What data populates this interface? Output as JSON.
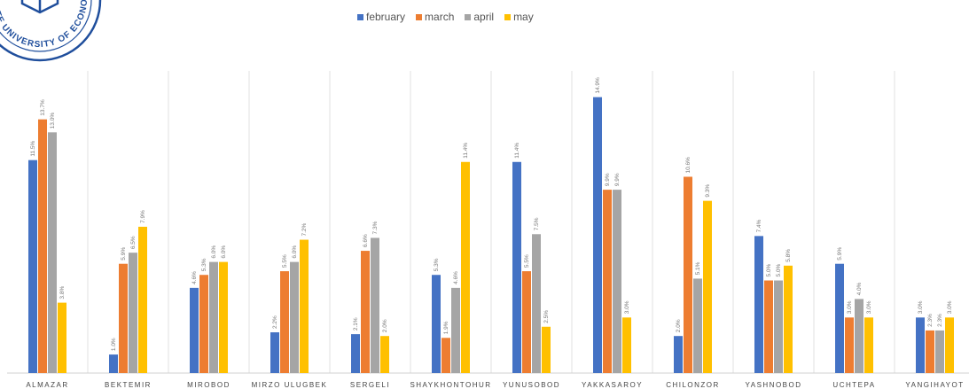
{
  "logo": {
    "text": "ATE UNIVERSITY OF ECONO"
  },
  "chart_data": {
    "type": "bar",
    "categories": [
      "ALMAZAR",
      "BEKTEMIR",
      "MIROBOD",
      "MIRZO ULUGBEK",
      "SERGELI",
      "SHAYKHONTOHUR",
      "YUNUSOBOD",
      "YAKKASAROY",
      "CHILONZOR",
      "YASHNOBOD",
      "UCHTEPA",
      "YANGIHAYOT"
    ],
    "series": [
      {
        "name": "february",
        "color": "#4472C4",
        "values": [
          11.5,
          1.0,
          4.6,
          2.2,
          2.1,
          5.3,
          11.4,
          14.9,
          2.0,
          7.4,
          5.9,
          3.0
        ]
      },
      {
        "name": "march",
        "color": "#ED7D31",
        "values": [
          13.7,
          5.9,
          5.3,
          5.5,
          6.6,
          1.9,
          5.5,
          9.9,
          10.6,
          5.0,
          3.0,
          2.3
        ]
      },
      {
        "name": "april",
        "color": "#A5A5A5",
        "values": [
          13.0,
          6.5,
          6.0,
          6.0,
          7.3,
          4.6,
          7.5,
          9.9,
          5.1,
          5.0,
          4.0,
          2.3
        ]
      },
      {
        "name": "may",
        "color": "#FFC000",
        "values": [
          3.8,
          7.9,
          6.0,
          7.2,
          2.0,
          11.4,
          2.5,
          3.0,
          9.3,
          5.8,
          3.0,
          3.0
        ]
      }
    ],
    "value_labels": [
      [
        "11.5%",
        "13.7%",
        "13.0%",
        "3.8%"
      ],
      [
        "1.0%",
        "5.9%",
        "6.5%",
        "7.9%"
      ],
      [
        "4.6%",
        "5.3%",
        "6.0%",
        "6.0%"
      ],
      [
        "2.2%",
        "5.5%",
        "6.0%",
        "7.2%"
      ],
      [
        "2.1%",
        "6.6%",
        "7.3%",
        "2.0%"
      ],
      [
        "5.3%",
        "1.9%",
        "4.6%",
        "11.4%"
      ],
      [
        "11.4%",
        "5.5%",
        "7.5%",
        "2.5%"
      ],
      [
        "14.9%",
        "9.9%",
        "9.9%",
        "3.0%"
      ],
      [
        "2.0%",
        "10.6%",
        "5.1%",
        "9.3%"
      ],
      [
        "7.4%",
        "5.0%",
        "5.0%",
        "5.8%"
      ],
      [
        "5.9%",
        "3.0%",
        "4.0%",
        "3.0%"
      ],
      [
        "3.0%",
        "2.3%",
        "2.3%",
        "3.0%"
      ]
    ],
    "ylim": [
      0,
      15.6
    ],
    "legend_position": "top-center",
    "grid": "vertical-separators"
  }
}
